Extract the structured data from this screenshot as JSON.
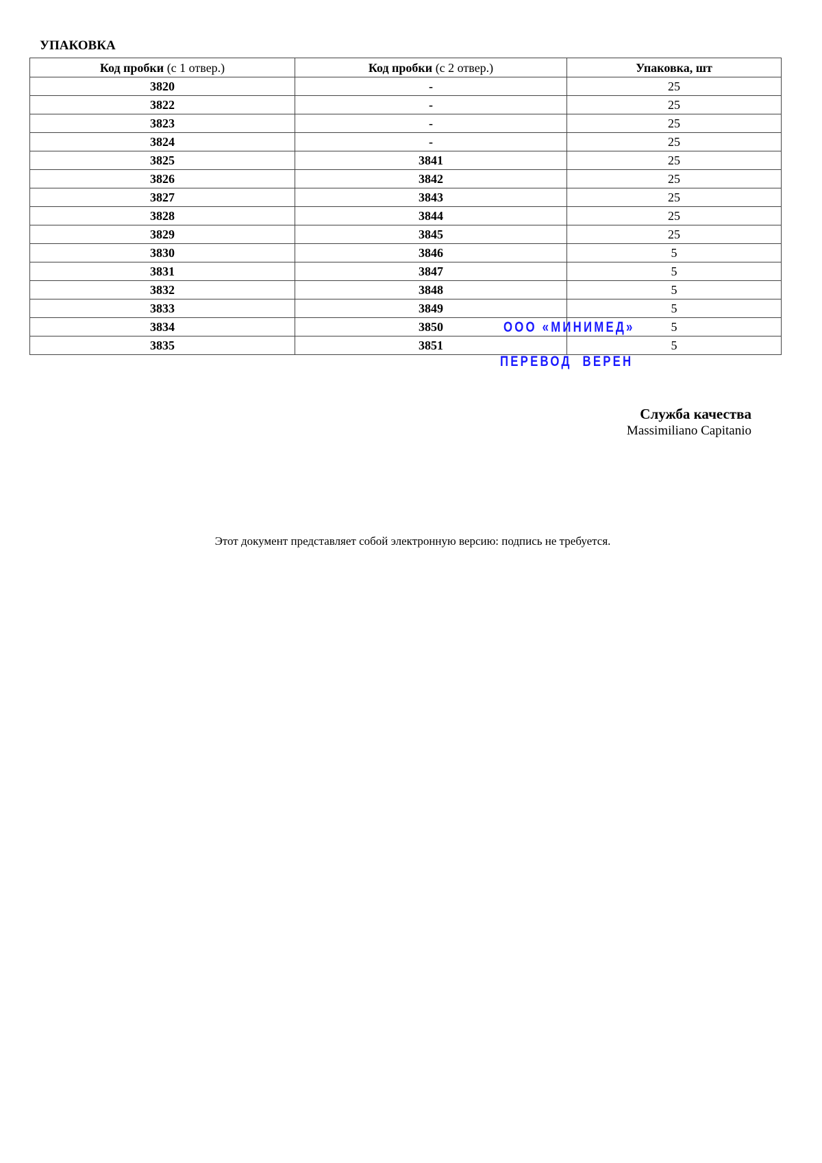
{
  "title": "УПАКОВКА",
  "table": {
    "headers": [
      {
        "bold": "Код пробки",
        "rest": " (с 1 отвер.)"
      },
      {
        "bold": "Код пробки",
        "rest": " (с 2 отвер.)"
      },
      {
        "bold": "Упаковка, шт",
        "rest": ""
      }
    ],
    "rows": [
      [
        "3820",
        "-",
        "25"
      ],
      [
        "3822",
        "-",
        "25"
      ],
      [
        "3823",
        "-",
        "25"
      ],
      [
        "3824",
        "-",
        "25"
      ],
      [
        "3825",
        "3841",
        "25"
      ],
      [
        "3826",
        "3842",
        "25"
      ],
      [
        "3827",
        "3843",
        "25"
      ],
      [
        "3828",
        "3844",
        "25"
      ],
      [
        "3829",
        "3845",
        "25"
      ],
      [
        "3830",
        "3846",
        "5"
      ],
      [
        "3831",
        "3847",
        "5"
      ],
      [
        "3832",
        "3848",
        "5"
      ],
      [
        "3833",
        "3849",
        "5"
      ],
      [
        "3834",
        "3850",
        "5"
      ],
      [
        "3835",
        "3851",
        "5"
      ]
    ]
  },
  "stamp": {
    "line1": "ООО «МИНИМЕД»",
    "line2": "ПЕРЕВОД ВЕРЕН",
    "color": "#1a1aff"
  },
  "signature": {
    "title": "Служба качества",
    "name": "Massimiliano Capitanio"
  },
  "footer": "Этот документ представляет собой электронную версию: подпись не требуется."
}
